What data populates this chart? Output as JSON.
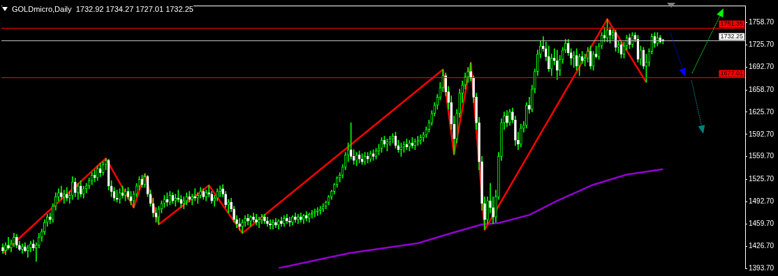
{
  "chart_data": {
    "type": "candlestick",
    "title": "GOLDmicro,Daily  1732.92 1734.27 1727.01 1732.25",
    "color": "#00ff00",
    "marker": "none",
    "tick_labels": "y",
    "categories": [
      null,
      null,
      null,
      null,
      null,
      null,
      null,
      null,
      null,
      null,
      null,
      null,
      null,
      null,
      null,
      null,
      null,
      null,
      null,
      null,
      null,
      null,
      null,
      null,
      null,
      null,
      null,
      null,
      null,
      null,
      null,
      null,
      null,
      null,
      null,
      null,
      null,
      null,
      null,
      null,
      null,
      null,
      null,
      null,
      null,
      null,
      null,
      null,
      null,
      null,
      null,
      null,
      null,
      null,
      null,
      null,
      null,
      null,
      null,
      null,
      null,
      null,
      null,
      null,
      null,
      null,
      null,
      null,
      null,
      null,
      null,
      null,
      null,
      null,
      null,
      null,
      null,
      null,
      null,
      null,
      null,
      null,
      null,
      null,
      null,
      null,
      null,
      null,
      null,
      null,
      null,
      null,
      null,
      null,
      null,
      null,
      null,
      null,
      null,
      null,
      null,
      null,
      null,
      null,
      null,
      null,
      null,
      null,
      null,
      null,
      null,
      null,
      null,
      null,
      null,
      null,
      null,
      null,
      null,
      null,
      null,
      null,
      null,
      null,
      null,
      null,
      null,
      null,
      null,
      null,
      null,
      null,
      null,
      null,
      null,
      null,
      null,
      null,
      null,
      null,
      null,
      null,
      null,
      null,
      null,
      null,
      null,
      null,
      null,
      null,
      null,
      null,
      null,
      null,
      null,
      null,
      null,
      null,
      null,
      null,
      null,
      null,
      null,
      null,
      null,
      null,
      null,
      null,
      null,
      null,
      null,
      null,
      null,
      null,
      null,
      null,
      null,
      null,
      null,
      null,
      null,
      null,
      null,
      null,
      null,
      null,
      null,
      null,
      null,
      null,
      null,
      null,
      null,
      null,
      null,
      null,
      null,
      null,
      null,
      null,
      null,
      null,
      null,
      null,
      null,
      null,
      null,
      null,
      null,
      null,
      null,
      null,
      null,
      null,
      null,
      null,
      null,
      null,
      null,
      null,
      null,
      null,
      null,
      null,
      null,
      null,
      null,
      null,
      null,
      null,
      null,
      null,
      null,
      null,
      null,
      null,
      null,
      null,
      null,
      null,
      null,
      null,
      null,
      null,
      null,
      null,
      null,
      null,
      null,
      null,
      null,
      null,
      null,
      null,
      null,
      null,
      null,
      null,
      null,
      null,
      null,
      null,
      null,
      null,
      null,
      null,
      null
    ],
    "ohlc": [
      [
        1425,
        1430,
        1416,
        1420
      ],
      [
        1420,
        1432,
        1414,
        1428
      ],
      [
        1428,
        1440,
        1422,
        1424
      ],
      [
        1424,
        1436,
        1418,
        1430
      ],
      [
        1430,
        1446,
        1426,
        1440
      ],
      [
        1440,
        1444,
        1424,
        1428
      ],
      [
        1428,
        1434,
        1420,
        1422
      ],
      [
        1422,
        1430,
        1416,
        1426
      ],
      [
        1426,
        1432,
        1418,
        1420
      ],
      [
        1420,
        1428,
        1410,
        1424
      ],
      [
        1424,
        1434,
        1418,
        1430
      ],
      [
        1430,
        1436,
        1420,
        1424
      ],
      [
        1424,
        1432,
        1404,
        1428
      ],
      [
        1428,
        1446,
        1424,
        1440
      ],
      [
        1440,
        1452,
        1434,
        1448
      ],
      [
        1448,
        1466,
        1444,
        1462
      ],
      [
        1462,
        1474,
        1456,
        1470
      ],
      [
        1470,
        1476,
        1460,
        1466
      ],
      [
        1466,
        1490,
        1462,
        1486
      ],
      [
        1486,
        1506,
        1480,
        1500
      ],
      [
        1500,
        1512,
        1494,
        1506
      ],
      [
        1506,
        1516,
        1496,
        1500
      ],
      [
        1500,
        1510,
        1490,
        1504
      ],
      [
        1504,
        1514,
        1494,
        1498
      ],
      [
        1498,
        1508,
        1490,
        1502
      ],
      [
        1502,
        1530,
        1496,
        1522
      ],
      [
        1522,
        1528,
        1500,
        1506
      ],
      [
        1506,
        1520,
        1496,
        1516
      ],
      [
        1516,
        1524,
        1500,
        1504
      ],
      [
        1504,
        1516,
        1498,
        1512
      ],
      [
        1512,
        1520,
        1506,
        1516
      ],
      [
        1516,
        1528,
        1512,
        1524
      ],
      [
        1524,
        1536,
        1518,
        1532
      ],
      [
        1532,
        1540,
        1522,
        1528
      ],
      [
        1528,
        1546,
        1524,
        1542
      ],
      [
        1542,
        1550,
        1530,
        1536
      ],
      [
        1536,
        1552,
        1532,
        1548
      ],
      [
        1548,
        1557,
        1540,
        1554
      ],
      [
        1554,
        1556,
        1510,
        1516
      ],
      [
        1516,
        1524,
        1500,
        1508
      ],
      [
        1508,
        1514,
        1494,
        1498
      ],
      [
        1498,
        1510,
        1492,
        1496
      ],
      [
        1496,
        1512,
        1490,
        1506
      ],
      [
        1506,
        1516,
        1498,
        1502
      ],
      [
        1502,
        1512,
        1494,
        1508
      ],
      [
        1508,
        1514,
        1496,
        1500
      ],
      [
        1500,
        1508,
        1488,
        1494
      ],
      [
        1494,
        1508,
        1484,
        1504
      ],
      [
        1504,
        1520,
        1500,
        1516
      ],
      [
        1516,
        1530,
        1510,
        1526
      ],
      [
        1526,
        1532,
        1514,
        1518
      ],
      [
        1518,
        1534,
        1514,
        1530
      ],
      [
        1530,
        1532,
        1500,
        1504
      ],
      [
        1504,
        1510,
        1486,
        1490
      ],
      [
        1490,
        1498,
        1470,
        1476
      ],
      [
        1476,
        1484,
        1462,
        1470
      ],
      [
        1470,
        1486,
        1459,
        1482
      ],
      [
        1482,
        1494,
        1476,
        1490
      ],
      [
        1490,
        1502,
        1484,
        1496
      ],
      [
        1496,
        1506,
        1486,
        1492
      ],
      [
        1492,
        1508,
        1488,
        1502
      ],
      [
        1502,
        1506,
        1490,
        1494
      ],
      [
        1494,
        1504,
        1486,
        1498
      ],
      [
        1498,
        1510,
        1492,
        1496
      ],
      [
        1496,
        1502,
        1484,
        1490
      ],
      [
        1490,
        1500,
        1482,
        1494
      ],
      [
        1494,
        1506,
        1488,
        1500
      ],
      [
        1500,
        1508,
        1492,
        1496
      ],
      [
        1496,
        1504,
        1488,
        1500
      ],
      [
        1500,
        1512,
        1494,
        1498
      ],
      [
        1498,
        1506,
        1490,
        1502
      ],
      [
        1502,
        1514,
        1498,
        1508
      ],
      [
        1508,
        1512,
        1496,
        1500
      ],
      [
        1500,
        1510,
        1494,
        1506
      ],
      [
        1506,
        1517,
        1500,
        1504
      ],
      [
        1504,
        1508,
        1490,
        1494
      ],
      [
        1494,
        1502,
        1486,
        1498
      ],
      [
        1498,
        1512,
        1494,
        1508
      ],
      [
        1508,
        1516,
        1500,
        1512
      ],
      [
        1512,
        1518,
        1500,
        1504
      ],
      [
        1504,
        1508,
        1484,
        1488
      ],
      [
        1488,
        1496,
        1476,
        1492
      ],
      [
        1492,
        1498,
        1478,
        1482
      ],
      [
        1482,
        1486,
        1462,
        1466
      ],
      [
        1466,
        1472,
        1454,
        1460
      ],
      [
        1460,
        1468,
        1450,
        1456
      ],
      [
        1456,
        1466,
        1446,
        1462
      ],
      [
        1462,
        1472,
        1456,
        1468
      ],
      [
        1468,
        1474,
        1458,
        1464
      ],
      [
        1464,
        1472,
        1456,
        1470
      ],
      [
        1470,
        1476,
        1462,
        1466
      ],
      [
        1466,
        1474,
        1458,
        1462
      ],
      [
        1462,
        1470,
        1454,
        1466
      ],
      [
        1466,
        1474,
        1460,
        1470
      ],
      [
        1470,
        1474,
        1460,
        1464
      ],
      [
        1464,
        1470,
        1456,
        1460
      ],
      [
        1460,
        1466,
        1452,
        1458
      ],
      [
        1458,
        1466,
        1452,
        1462
      ],
      [
        1462,
        1468,
        1454,
        1458
      ],
      [
        1458,
        1466,
        1452,
        1464
      ],
      [
        1464,
        1470,
        1456,
        1460
      ],
      [
        1460,
        1472,
        1456,
        1468
      ],
      [
        1468,
        1474,
        1460,
        1464
      ],
      [
        1464,
        1470,
        1456,
        1462
      ],
      [
        1462,
        1472,
        1458,
        1470
      ],
      [
        1470,
        1476,
        1462,
        1466
      ],
      [
        1466,
        1474,
        1460,
        1470
      ],
      [
        1470,
        1476,
        1462,
        1466
      ],
      [
        1466,
        1474,
        1460,
        1472
      ],
      [
        1472,
        1478,
        1464,
        1468
      ],
      [
        1468,
        1476,
        1462,
        1474
      ],
      [
        1474,
        1480,
        1468,
        1476
      ],
      [
        1476,
        1482,
        1470,
        1478
      ],
      [
        1478,
        1484,
        1472,
        1480
      ],
      [
        1480,
        1486,
        1474,
        1482
      ],
      [
        1482,
        1490,
        1478,
        1486
      ],
      [
        1486,
        1494,
        1482,
        1492
      ],
      [
        1492,
        1502,
        1488,
        1500
      ],
      [
        1500,
        1510,
        1496,
        1508
      ],
      [
        1508,
        1520,
        1504,
        1518
      ],
      [
        1518,
        1530,
        1514,
        1528
      ],
      [
        1528,
        1536,
        1522,
        1532
      ],
      [
        1532,
        1548,
        1528,
        1544
      ],
      [
        1544,
        1566,
        1540,
        1562
      ],
      [
        1562,
        1580,
        1552,
        1570
      ],
      [
        1570,
        1610,
        1556,
        1560
      ],
      [
        1560,
        1570,
        1548,
        1554
      ],
      [
        1554,
        1566,
        1546,
        1562
      ],
      [
        1562,
        1568,
        1550,
        1556
      ],
      [
        1556,
        1564,
        1548,
        1552
      ],
      [
        1552,
        1566,
        1548,
        1560
      ],
      [
        1560,
        1566,
        1550,
        1556
      ],
      [
        1556,
        1568,
        1552,
        1564
      ],
      [
        1564,
        1570,
        1554,
        1560
      ],
      [
        1560,
        1572,
        1556,
        1568
      ],
      [
        1568,
        1578,
        1562,
        1572
      ],
      [
        1572,
        1588,
        1566,
        1584
      ],
      [
        1584,
        1590,
        1574,
        1578
      ],
      [
        1578,
        1586,
        1568,
        1582
      ],
      [
        1582,
        1590,
        1576,
        1586
      ],
      [
        1586,
        1594,
        1580,
        1590
      ],
      [
        1590,
        1596,
        1572,
        1576
      ],
      [
        1576,
        1584,
        1566,
        1570
      ],
      [
        1570,
        1580,
        1560,
        1574
      ],
      [
        1574,
        1582,
        1566,
        1578
      ],
      [
        1578,
        1586,
        1570,
        1574
      ],
      [
        1574,
        1584,
        1568,
        1580
      ],
      [
        1580,
        1588,
        1572,
        1576
      ],
      [
        1576,
        1586,
        1570,
        1582
      ],
      [
        1582,
        1590,
        1576,
        1584
      ],
      [
        1584,
        1592,
        1578,
        1588
      ],
      [
        1588,
        1596,
        1582,
        1592
      ],
      [
        1592,
        1604,
        1588,
        1600
      ],
      [
        1600,
        1614,
        1596,
        1610
      ],
      [
        1610,
        1628,
        1606,
        1624
      ],
      [
        1624,
        1640,
        1620,
        1636
      ],
      [
        1636,
        1652,
        1630,
        1648
      ],
      [
        1648,
        1670,
        1644,
        1662
      ],
      [
        1662,
        1689,
        1656,
        1680
      ],
      [
        1680,
        1684,
        1650,
        1656
      ],
      [
        1656,
        1664,
        1630,
        1640
      ],
      [
        1640,
        1650,
        1600,
        1608
      ],
      [
        1608,
        1620,
        1563,
        1586
      ],
      [
        1586,
        1630,
        1580,
        1624
      ],
      [
        1624,
        1660,
        1618,
        1654
      ],
      [
        1654,
        1672,
        1640,
        1666
      ],
      [
        1666,
        1684,
        1660,
        1678
      ],
      [
        1678,
        1692,
        1670,
        1686
      ],
      [
        1686,
        1699,
        1672,
        1676
      ],
      [
        1676,
        1680,
        1640,
        1648
      ],
      [
        1648,
        1654,
        1600,
        1610
      ],
      [
        1610,
        1618,
        1540,
        1552
      ],
      [
        1552,
        1560,
        1480,
        1490
      ],
      [
        1490,
        1500,
        1451,
        1466
      ],
      [
        1466,
        1500,
        1460,
        1494
      ],
      [
        1494,
        1520,
        1476,
        1484
      ],
      [
        1484,
        1500,
        1460,
        1470
      ],
      [
        1470,
        1510,
        1462,
        1500
      ],
      [
        1500,
        1566,
        1496,
        1560
      ],
      [
        1560,
        1616,
        1554,
        1610
      ],
      [
        1610,
        1626,
        1600,
        1620
      ],
      [
        1620,
        1628,
        1604,
        1610
      ],
      [
        1610,
        1630,
        1606,
        1626
      ],
      [
        1626,
        1632,
        1610,
        1614
      ],
      [
        1614,
        1620,
        1576,
        1584
      ],
      [
        1584,
        1596,
        1570,
        1578
      ],
      [
        1578,
        1608,
        1574,
        1602
      ],
      [
        1602,
        1612,
        1596,
        1606
      ],
      [
        1606,
        1640,
        1602,
        1636
      ],
      [
        1636,
        1648,
        1624,
        1630
      ],
      [
        1630,
        1666,
        1626,
        1660
      ],
      [
        1660,
        1690,
        1654,
        1686
      ],
      [
        1686,
        1718,
        1680,
        1712
      ],
      [
        1712,
        1732,
        1706,
        1724
      ],
      [
        1724,
        1738,
        1716,
        1720
      ],
      [
        1720,
        1730,
        1702,
        1708
      ],
      [
        1708,
        1724,
        1686,
        1690
      ],
      [
        1690,
        1712,
        1680,
        1706
      ],
      [
        1706,
        1720,
        1696,
        1702
      ],
      [
        1702,
        1718,
        1674,
        1688
      ],
      [
        1688,
        1710,
        1680,
        1704
      ],
      [
        1704,
        1722,
        1698,
        1718
      ],
      [
        1718,
        1734,
        1714,
        1728
      ],
      [
        1728,
        1734,
        1710,
        1714
      ],
      [
        1714,
        1720,
        1696,
        1706
      ],
      [
        1706,
        1716,
        1692,
        1710
      ],
      [
        1710,
        1720,
        1688,
        1694
      ],
      [
        1694,
        1712,
        1680,
        1708
      ],
      [
        1708,
        1716,
        1698,
        1702
      ],
      [
        1702,
        1712,
        1694,
        1706
      ],
      [
        1706,
        1722,
        1700,
        1716
      ],
      [
        1716,
        1724,
        1690,
        1694
      ],
      [
        1694,
        1716,
        1688,
        1712
      ],
      [
        1712,
        1724,
        1706,
        1708
      ],
      [
        1708,
        1728,
        1704,
        1724
      ],
      [
        1724,
        1744,
        1720,
        1740
      ],
      [
        1740,
        1752,
        1730,
        1736
      ],
      [
        1736,
        1764,
        1730,
        1748
      ],
      [
        1748,
        1752,
        1728,
        1740
      ],
      [
        1740,
        1748,
        1734,
        1744
      ],
      [
        1744,
        1748,
        1716,
        1722
      ],
      [
        1722,
        1732,
        1714,
        1726
      ],
      [
        1726,
        1730,
        1706,
        1712
      ],
      [
        1712,
        1730,
        1706,
        1724
      ],
      [
        1724,
        1740,
        1718,
        1736
      ],
      [
        1736,
        1742,
        1720,
        1726
      ],
      [
        1726,
        1744,
        1722,
        1740
      ],
      [
        1740,
        1744,
        1730,
        1734
      ],
      [
        1734,
        1740,
        1700,
        1704
      ],
      [
        1704,
        1724,
        1696,
        1718
      ],
      [
        1718,
        1722,
        1690,
        1694
      ],
      [
        1694,
        1712,
        1670,
        1700
      ],
      [
        1700,
        1720,
        1694,
        1716
      ],
      [
        1716,
        1742,
        1712,
        1738
      ],
      [
        1738,
        1744,
        1722,
        1728
      ],
      [
        1728,
        1744,
        1724,
        1736
      ],
      [
        1736,
        1740,
        1728,
        1730
      ],
      [
        1732.92,
        1734.27,
        1727.01,
        1732.25
      ],
      null,
      null,
      null,
      null,
      null,
      null,
      null,
      null,
      null,
      null,
      null,
      null,
      null,
      null,
      null,
      null,
      null,
      null,
      null,
      null,
      null,
      null,
      null,
      null,
      null,
      null,
      null,
      null,
      null
    ],
    "colors": [
      "#ffffff",
      "#00ff00",
      "#ffffff",
      "#00ff00",
      "#00ff00",
      "#ffffff",
      "#ffffff",
      "#00ff00",
      "#ffffff",
      "#00ff00",
      "#00ff00",
      "#ffffff",
      "#00ff00",
      "#00ff00",
      "#00ff00",
      "#00ff00",
      "#00ff00",
      "#ffffff",
      "#00ff00",
      "#00ff00",
      "#00ff00",
      "#ffffff",
      "#00ff00",
      "#ffffff",
      "#00ff00",
      "#00ff00",
      "#ffffff",
      "#00ff00",
      "#ffffff",
      "#00ff00",
      "#00ff00",
      "#00ff00",
      "#00ff00",
      "#ffffff",
      "#00ff00",
      "#ffffff",
      "#00ff00",
      "#00ff00",
      "#ffffff",
      "#ffffff",
      "#ffffff",
      "#ffffff",
      "#00ff00",
      "#ffffff",
      "#00ff00",
      "#ffffff",
      "#ffffff",
      "#00ff00",
      "#00ff00",
      "#00ff00",
      "#ffffff",
      "#00ff00",
      "#ffffff",
      "#ffffff",
      "#ffffff",
      "#ffffff",
      "#00ff00",
      "#00ff00",
      "#00ff00",
      "#ffffff",
      "#00ff00",
      "#ffffff",
      "#00ff00",
      "#ffffff",
      "#ffffff",
      "#00ff00",
      "#00ff00",
      "#ffffff",
      "#00ff00",
      "#ffffff",
      "#00ff00",
      "#00ff00",
      "#ffffff",
      "#00ff00",
      "#ffffff",
      "#ffffff",
      "#00ff00",
      "#00ff00",
      "#00ff00",
      "#ffffff",
      "#ffffff",
      "#00ff00",
      "#ffffff",
      "#ffffff",
      "#ffffff",
      "#ffffff",
      "#00ff00",
      "#00ff00",
      "#ffffff",
      "#00ff00",
      "#ffffff",
      "#ffffff",
      "#00ff00",
      "#00ff00",
      "#ffffff",
      "#ffffff",
      "#ffffff",
      "#00ff00",
      "#ffffff",
      "#00ff00",
      "#ffffff",
      "#00ff00",
      "#ffffff",
      "#ffffff",
      "#00ff00",
      "#ffffff",
      "#00ff00",
      "#ffffff",
      "#00ff00",
      "#ffffff",
      "#00ff00",
      "#00ff00",
      "#00ff00",
      "#00ff00",
      "#00ff00",
      "#00ff00",
      "#00ff00",
      "#00ff00",
      "#00ff00",
      "#00ff00",
      "#00ff00",
      "#00ff00",
      "#00ff00",
      "#00ff00",
      "#00ff00",
      "#ffffff",
      "#ffffff",
      "#00ff00",
      "#ffffff",
      "#ffffff",
      "#00ff00",
      "#ffffff",
      "#00ff00",
      "#ffffff",
      "#00ff00",
      "#00ff00",
      "#00ff00",
      "#ffffff",
      "#00ff00",
      "#00ff00",
      "#00ff00",
      "#ffffff",
      "#ffffff",
      "#00ff00",
      "#00ff00",
      "#ffffff",
      "#00ff00",
      "#ffffff",
      "#00ff00",
      "#00ff00",
      "#00ff00",
      "#00ff00",
      "#00ff00",
      "#00ff00",
      "#00ff00",
      "#00ff00",
      "#00ff00",
      "#00ff00",
      "#00ff00",
      "#ffffff",
      "#ffffff",
      "#ffffff",
      "#ffffff",
      "#00ff00",
      "#00ff00",
      "#00ff00",
      "#00ff00",
      "#00ff00",
      "#ffffff",
      "#ffffff",
      "#ffffff",
      "#ffffff",
      "#ffffff",
      "#ffffff",
      "#00ff00",
      "#ffffff",
      "#ffffff",
      "#00ff00",
      "#00ff00",
      "#00ff00",
      "#00ff00",
      "#ffffff",
      "#00ff00",
      "#ffffff",
      "#ffffff",
      "#ffffff",
      "#00ff00",
      "#00ff00",
      "#00ff00",
      "#ffffff",
      "#00ff00",
      "#00ff00",
      "#00ff00",
      "#00ff00",
      "#ffffff",
      "#ffffff",
      "#ffffff",
      "#00ff00",
      "#ffffff",
      "#ffffff",
      "#00ff00",
      "#00ff00",
      "#00ff00",
      "#ffffff",
      "#ffffff",
      "#00ff00",
      "#ffffff",
      "#00ff00",
      "#ffffff",
      "#00ff00",
      "#00ff00",
      "#ffffff",
      "#00ff00",
      "#ffffff",
      "#00ff00",
      "#00ff00",
      "#ffffff",
      "#00ff00",
      "#ffffff",
      "#00ff00",
      "#ffffff",
      "#00ff00",
      "#ffffff",
      "#00ff00",
      "#00ff00",
      "#ffffff",
      "#00ff00",
      "#ffffff",
      "#ffffff",
      "#00ff00",
      "#ffffff",
      "#00ff00",
      "#00ff00",
      "#00ff00",
      "#ffffff",
      "#00ff00",
      "#ffffff",
      "#ffffff",
      null,
      null,
      null,
      null,
      null,
      null,
      null,
      null,
      null,
      null,
      null,
      null,
      null,
      null,
      null,
      null,
      null,
      null,
      null,
      null,
      null,
      null,
      null,
      null,
      null,
      null,
      null,
      null,
      null
    ],
    "series": [
      {
        "type": "line",
        "color": "#ff0000",
        "values": [
          1416,
          null,
          null,
          null,
          null,
          null,
          null,
          null,
          null,
          null,
          null,
          null,
          null,
          null,
          null,
          null,
          null,
          null,
          null,
          null,
          null,
          null,
          null,
          null,
          null,
          null,
          null,
          null,
          null,
          null,
          null,
          null,
          null,
          null,
          null,
          null,
          null,
          1557,
          null,
          null,
          null,
          null,
          null,
          null,
          null,
          null,
          null,
          1484,
          null,
          null,
          null,
          1534,
          null,
          null,
          null,
          null,
          1459,
          null,
          null,
          null,
          null,
          null,
          null,
          null,
          null,
          null,
          null,
          null,
          null,
          null,
          null,
          null,
          null,
          null,
          1517,
          null,
          null,
          null,
          null,
          null,
          null,
          null,
          null,
          null,
          null,
          null,
          1446,
          null,
          null,
          null,
          null,
          null,
          null,
          null,
          null,
          null,
          null,
          null,
          null,
          null,
          null,
          null,
          null,
          null,
          null,
          null,
          null,
          null,
          null,
          null,
          null,
          null,
          null,
          null,
          null,
          null,
          null,
          null,
          null,
          null,
          null,
          null,
          null,
          null,
          null,
          null,
          null,
          null,
          null,
          null,
          null,
          null,
          null,
          null,
          null,
          null,
          null,
          null,
          null,
          null,
          null,
          null,
          null,
          null,
          null,
          null,
          null,
          null,
          null,
          null,
          null,
          null,
          null,
          null,
          null,
          null,
          null,
          null,
          1689,
          null,
          null,
          null,
          1563,
          null,
          null,
          null,
          null,
          null,
          1699,
          null,
          null,
          null,
          null,
          1451,
          null,
          null,
          null,
          null,
          null,
          null,
          null,
          null,
          null,
          null,
          null,
          null,
          null,
          null,
          null,
          null,
          null,
          null,
          null,
          null,
          null,
          null,
          null,
          null,
          null,
          null,
          null,
          null,
          null,
          null,
          null,
          null,
          null,
          null,
          null,
          null,
          null,
          null,
          null,
          null,
          null,
          null,
          null,
          1764,
          null,
          null,
          null,
          null,
          null,
          null,
          null,
          null,
          null,
          null,
          null,
          null,
          null,
          1670,
          null,
          null,
          null,
          null,
          null,
          null,
          null,
          null,
          null,
          null,
          null,
          null,
          null,
          null,
          null,
          null,
          null,
          null,
          null,
          null,
          null,
          null,
          null,
          null,
          null,
          null,
          null,
          null,
          null,
          null,
          null,
          null,
          null,
          null,
          null
        ]
      },
      {
        "type": "line",
        "color": "#9400d3",
        "values": [
          null,
          null,
          null,
          null,
          null,
          null,
          null,
          null,
          null,
          null,
          null,
          null,
          null,
          null,
          null,
          null,
          null,
          null,
          null,
          null,
          null,
          null,
          null,
          null,
          null,
          null,
          null,
          null,
          null,
          null,
          null,
          null,
          null,
          null,
          null,
          null,
          null,
          null,
          null,
          null,
          null,
          null,
          null,
          null,
          null,
          null,
          null,
          null,
          null,
          null,
          null,
          null,
          null,
          null,
          null,
          null,
          null,
          null,
          null,
          null,
          null,
          null,
          null,
          null,
          null,
          null,
          null,
          null,
          null,
          null,
          null,
          null,
          null,
          null,
          null,
          null,
          null,
          null,
          null,
          null,
          null,
          null,
          null,
          null,
          null,
          null,
          null,
          null,
          null,
          null,
          null,
          null,
          null,
          null,
          null,
          null,
          null,
          null,
          null,
          1394,
          null,
          null,
          null,
          null,
          null,
          null,
          null,
          null,
          null,
          null,
          null,
          null,
          null,
          null,
          null,
          null,
          null,
          null,
          null,
          null,
          null,
          null,
          null,
          null,
          1416,
          null,
          null,
          null,
          null,
          null,
          null,
          null,
          null,
          null,
          null,
          null,
          null,
          null,
          null,
          null,
          null,
          null,
          null,
          null,
          null,
          null,
          null,
          null,
          null,
          1431,
          null,
          null,
          null,
          null,
          null,
          null,
          null,
          null,
          null,
          null,
          null,
          1446,
          null,
          null,
          null,
          null,
          null,
          null,
          null,
          null,
          null,
          null,
          1459,
          null,
          null,
          null,
          null,
          null,
          1461,
          null,
          null,
          null,
          null,
          null,
          null,
          null,
          null,
          null,
          null,
          1473,
          null,
          null,
          null,
          null,
          null,
          null,
          null,
          null,
          null,
          1494,
          null,
          null,
          null,
          null,
          null,
          null,
          null,
          null,
          null,
          null,
          null,
          null,
          1518,
          null,
          null,
          null,
          null,
          null,
          null,
          null,
          null,
          null,
          null,
          null,
          1533,
          null,
          null,
          null,
          null,
          null,
          null,
          null,
          null,
          null,
          null,
          null,
          null,
          1541,
          null,
          null,
          null,
          null,
          null,
          null,
          null,
          null,
          null,
          null,
          null,
          null,
          null,
          null,
          null,
          null,
          null,
          null,
          null,
          null,
          null,
          null,
          null,
          null,
          null,
          null,
          null,
          null,
          null
        ]
      }
    ],
    "ylim": [
      1393.7,
      1784
    ],
    "yticks": [
      {
        "value": 1393.7,
        "label": "1393.70"
      },
      {
        "value": 1426.7,
        "label": "1426.70"
      },
      {
        "value": 1459.7,
        "label": "1459.70"
      },
      {
        "value": 1492.7,
        "label": "1492.70"
      },
      {
        "value": 1525.7,
        "label": "1525.70"
      },
      {
        "value": 1559.7,
        "label": "1559.70"
      },
      {
        "value": 1592.7,
        "label": "1592.70"
      },
      {
        "value": 1625.7,
        "label": "1625.70"
      },
      {
        "value": 1658.7,
        "label": "1658.70"
      },
      {
        "value": 1692.7,
        "label": "1692.70"
      },
      {
        "value": 1725.7,
        "label": "1725.70"
      },
      {
        "value": 1758.7,
        "label": "1758.70"
      }
    ],
    "ref_lines": [
      {
        "axis": "y",
        "value": 1751.35,
        "label": "1751.35",
        "color": "#ff0000"
      },
      {
        "axis": "y",
        "value": 1677.01,
        "label": "1677.01",
        "color": "#ff0000"
      },
      {
        "axis": "y",
        "value": 1732.25,
        "label": "1732.25",
        "color": "#c0c0c0"
      }
    ]
  }
}
